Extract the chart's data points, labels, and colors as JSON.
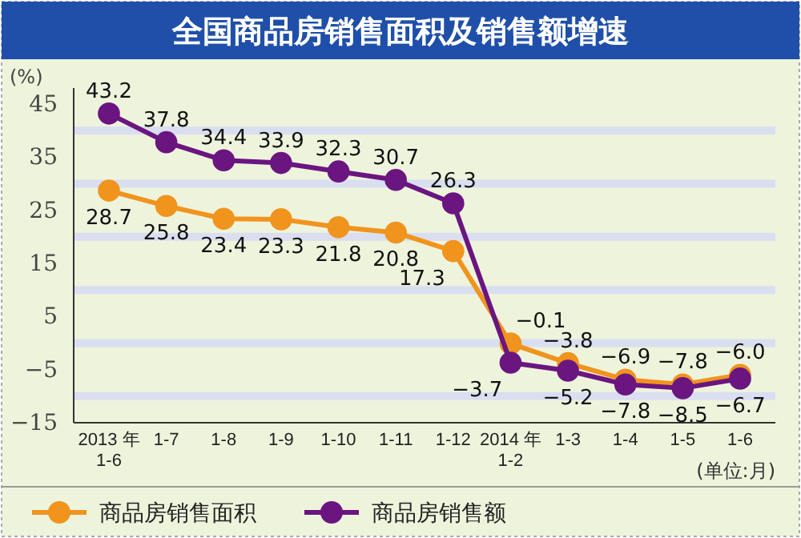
{
  "chart_data": {
    "type": "line",
    "title": "全国商品房销售面积及销售额增速",
    "ylabel": "(%)",
    "categories": [
      "2013 年\n1-6",
      "1-7",
      "1-8",
      "1-9",
      "1-10",
      "1-11",
      "1-12",
      "2014 年\n1-2",
      "1-3",
      "1-4",
      "1-5",
      "1-6"
    ],
    "series": [
      {
        "name": "商品房销售面积",
        "color": "#f0941e",
        "values": [
          28.7,
          25.8,
          23.4,
          23.3,
          21.8,
          20.8,
          17.3,
          -0.1,
          -3.8,
          -6.9,
          -7.8,
          -6.0
        ],
        "value_labels": [
          "28.7",
          "25.8",
          "23.4",
          "23.3",
          "21.8",
          "20.8",
          "17.3",
          "−0.1",
          "−3.8",
          "−6.9",
          "−7.8",
          "−6.0"
        ]
      },
      {
        "name": "商品房销售额",
        "color": "#6b1580",
        "values": [
          43.2,
          37.8,
          34.4,
          33.9,
          32.3,
          30.7,
          26.3,
          -3.7,
          -5.2,
          -7.8,
          -8.5,
          -6.7
        ],
        "value_labels": [
          "43.2",
          "37.8",
          "34.4",
          "33.9",
          "32.3",
          "30.7",
          "26.3",
          "−3.7",
          "−5.2",
          "−7.8",
          "−8.5",
          "−6.7"
        ]
      }
    ],
    "ylim": [
      -15,
      48
    ],
    "yticks": [
      -15,
      {
        "value": -10,
        "label": null
      },
      -5,
      {
        "value": 0,
        "label": null
      },
      5,
      {
        "value": 10,
        "label": null
      },
      15,
      {
        "value": 20,
        "label": null
      },
      25,
      {
        "value": 30,
        "label": null
      },
      35,
      {
        "value": 40,
        "label": null
      },
      45
    ],
    "grid": "y",
    "marker": "circle",
    "legend": "bottom",
    "annotations": [
      "(单位:月)"
    ]
  }
}
